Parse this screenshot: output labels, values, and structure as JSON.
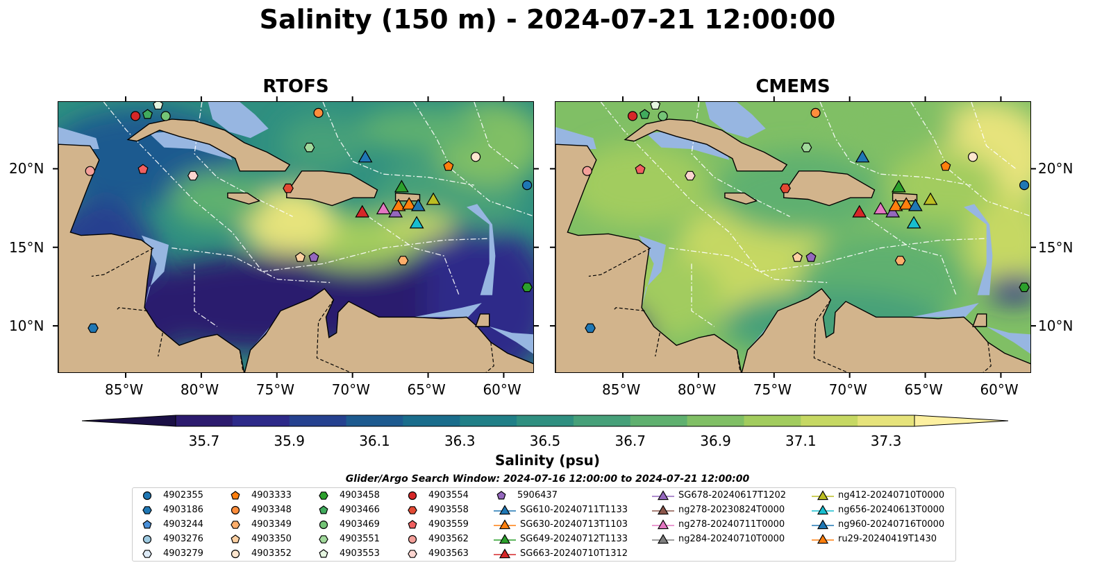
{
  "title": "Salinity (150 m) - 2024-07-21 12:00:00",
  "panels": [
    {
      "title": "RTOFS",
      "palette": "rtofs"
    },
    {
      "title": "CMEMS",
      "palette": "cmems"
    }
  ],
  "lon_ticks": [
    "85°W",
    "80°W",
    "75°W",
    "70°W",
    "65°W",
    "60°W"
  ],
  "lat_ticks": [
    "20°N",
    "15°N",
    "10°N"
  ],
  "colorbar": {
    "labels": [
      "35.7",
      "35.9",
      "36.1",
      "36.3",
      "36.5",
      "36.7",
      "36.9",
      "37.1",
      "37.3"
    ],
    "colors": [
      "#2c1b6e",
      "#2d2a89",
      "#25418f",
      "#1d5a8f",
      "#1a6d8c",
      "#207f87",
      "#2f8f80",
      "#46a079",
      "#5fb06f",
      "#80bf65",
      "#a2cc5e",
      "#c6d863",
      "#e6e37b"
    ],
    "title": "Salinity (psu)",
    "extend": "both"
  },
  "search_window": "Glider/Argo Search Window: 2024-07-16 12:00:00 to 2024-07-21 12:00:00",
  "legend": {
    "columns": [
      [
        {
          "label": "4902355",
          "marker": "circle",
          "color": "#1f77b4"
        },
        {
          "label": "4903186",
          "marker": "hexagon",
          "color": "#1f77b4"
        },
        {
          "label": "4903244",
          "marker": "pentagon",
          "color": "#4a90d9"
        },
        {
          "label": "4903276",
          "marker": "circle",
          "color": "#9ecae1"
        },
        {
          "label": "4903279",
          "marker": "hexagon",
          "color": "#deebf7"
        }
      ],
      [
        {
          "label": "4903333",
          "marker": "pentagon",
          "color": "#ff7f0e"
        },
        {
          "label": "4903348",
          "marker": "circle",
          "color": "#fd8d3c"
        },
        {
          "label": "4903349",
          "marker": "hexagon",
          "color": "#fdae6b"
        },
        {
          "label": "4903350",
          "marker": "pentagon",
          "color": "#fdd0a2"
        },
        {
          "label": "4903352",
          "marker": "circle",
          "color": "#fee6ce"
        }
      ],
      [
        {
          "label": "4903458",
          "marker": "hexagon",
          "color": "#2ca02c"
        },
        {
          "label": "4903466",
          "marker": "pentagon",
          "color": "#41ab5d"
        },
        {
          "label": "4903469",
          "marker": "circle",
          "color": "#74c476"
        },
        {
          "label": "4903551",
          "marker": "hexagon",
          "color": "#a1d99b"
        },
        {
          "label": "4903553",
          "marker": "pentagon",
          "color": "#e5f5e0"
        }
      ],
      [
        {
          "label": "4903554",
          "marker": "circle",
          "color": "#d62728"
        },
        {
          "label": "4903558",
          "marker": "hexagon",
          "color": "#e34a33"
        },
        {
          "label": "4903559",
          "marker": "pentagon",
          "color": "#f06060"
        },
        {
          "label": "4903562",
          "marker": "circle",
          "color": "#f4a09a"
        },
        {
          "label": "4903563",
          "marker": "hexagon",
          "color": "#fcd5d0"
        }
      ],
      [
        {
          "label": "5906437",
          "marker": "pentagon",
          "color": "#9467bd"
        },
        {
          "label": "SG610-20240711T1133",
          "marker": "triangle",
          "color": "#1f77b4"
        },
        {
          "label": "SG630-20240713T1103",
          "marker": "triangle",
          "color": "#ff7f0e"
        },
        {
          "label": "SG649-20240712T1133",
          "marker": "triangle",
          "color": "#2ca02c"
        },
        {
          "label": "SG663-20240710T1312",
          "marker": "triangle",
          "color": "#d62728"
        }
      ],
      [
        {
          "label": "SG678-20240617T1202",
          "marker": "triangle",
          "color": "#9467bd"
        },
        {
          "label": "ng278-20230824T0000",
          "marker": "triangle",
          "color": "#8c564b"
        },
        {
          "label": "ng278-20240711T0000",
          "marker": "triangle",
          "color": "#e377c2"
        },
        {
          "label": "ng284-20240710T0000",
          "marker": "triangle",
          "color": "#7f7f7f"
        }
      ],
      [
        {
          "label": "ng412-20240710T0000",
          "marker": "triangle",
          "color": "#bcbd22"
        },
        {
          "label": "ng656-20240613T0000",
          "marker": "triangle",
          "color": "#17becf"
        },
        {
          "label": "ng960-20240716T0000",
          "marker": "triangle",
          "color": "#1f77b4"
        },
        {
          "label": "ru29-20240419T1430",
          "marker": "triangle",
          "color": "#ff7f0e"
        }
      ]
    ]
  },
  "chart_data": {
    "type": "map",
    "extent": {
      "lon": [
        -89.5,
        -58.0
      ],
      "lat": [
        7.0,
        24.3
      ]
    },
    "colors": {
      "land": "#d2b48c",
      "shallow_water": "#97b6e1"
    },
    "floats": [
      {
        "id": "4903554",
        "lon": -84.4,
        "lat": 23.4
      },
      {
        "id": "4903466",
        "lon": -83.6,
        "lat": 23.5
      },
      {
        "id": "4903553",
        "lon": -82.9,
        "lat": 24.1
      },
      {
        "id": "4903469",
        "lon": -82.4,
        "lat": 23.4
      },
      {
        "id": "4903348",
        "lon": -72.3,
        "lat": 23.6
      },
      {
        "id": "4903551",
        "lon": -72.9,
        "lat": 21.4
      },
      {
        "id": "4903562",
        "lon": -87.4,
        "lat": 19.9
      },
      {
        "id": "4903559",
        "lon": -83.9,
        "lat": 20.0
      },
      {
        "id": "4903563",
        "lon": -80.6,
        "lat": 19.6
      },
      {
        "id": "4903558",
        "lon": -74.3,
        "lat": 18.8
      },
      {
        "id": "4903333",
        "lon": -63.7,
        "lat": 20.2
      },
      {
        "id": "4903352",
        "lon": -61.9,
        "lat": 20.8
      },
      {
        "id": "4902355",
        "lon": -58.5,
        "lat": 19.0
      },
      {
        "id": "4903350",
        "lon": -73.5,
        "lat": 14.4
      },
      {
        "id": "5906437",
        "lon": -72.6,
        "lat": 14.4
      },
      {
        "id": "4903349",
        "lon": -66.7,
        "lat": 14.2
      },
      {
        "id": "4903458",
        "lon": -58.5,
        "lat": 12.5
      },
      {
        "id": "4903186",
        "lon": -87.2,
        "lat": 9.9
      }
    ],
    "gliders": [
      {
        "id": "ng960-20240716T0000",
        "lon": -69.2,
        "lat": 20.8
      },
      {
        "id": "SG649-20240712T1133",
        "lon": -66.8,
        "lat": 18.9
      },
      {
        "id": "ng412-20240710T0000",
        "lon": -64.7,
        "lat": 18.1
      },
      {
        "id": "SG663-20240710T1312",
        "lon": -69.4,
        "lat": 17.3
      },
      {
        "id": "ng278-20240711T0000",
        "lon": -68.0,
        "lat": 17.5
      },
      {
        "id": "SG678-20240617T1202",
        "lon": -67.2,
        "lat": 17.3
      },
      {
        "id": "ru29-20240419T1430",
        "lon": -67.0,
        "lat": 17.7
      },
      {
        "id": "SG630-20240713T1103",
        "lon": -66.3,
        "lat": 17.8
      },
      {
        "id": "SG610-20240711T1133",
        "lon": -65.7,
        "lat": 17.7
      },
      {
        "id": "ng656-20240613T0000",
        "lon": -65.8,
        "lat": 16.6
      }
    ]
  }
}
